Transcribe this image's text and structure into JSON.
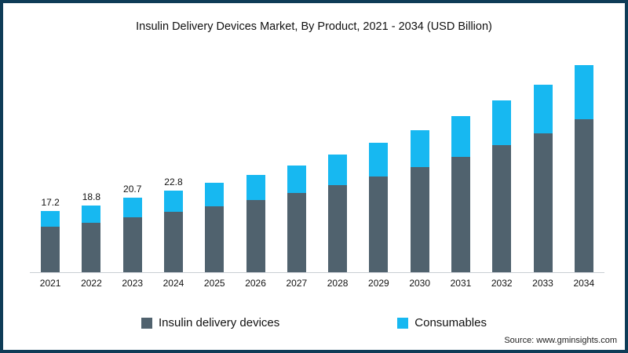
{
  "title": "Insulin Delivery Devices  Market, By Product, 2021 - 2034 (USD Billion)",
  "source": "Source: www.gminsights.com",
  "legend": {
    "devices_label": "Insulin delivery devices",
    "consumables_label": "Consumables"
  },
  "colors": {
    "devices": "#50626e",
    "consumables": "#17b8f1"
  },
  "chart_data": {
    "type": "bar",
    "stacked": true,
    "title": "Insulin Delivery Devices  Market, By Product, 2021 - 2034 (USD Billion)",
    "xlabel": "",
    "ylabel": "",
    "ylim": [
      0,
      60
    ],
    "grid": false,
    "legend_position": "bottom",
    "categories": [
      "2021",
      "2022",
      "2023",
      "2024",
      "2025",
      "2026",
      "2027",
      "2028",
      "2029",
      "2030",
      "2031",
      "2032",
      "2033",
      "2034"
    ],
    "series": [
      {
        "name": "Insulin delivery devices",
        "color": "#50626e",
        "values": [
          12.7,
          13.9,
          15.3,
          16.9,
          18.5,
          20.3,
          22.3,
          24.4,
          26.9,
          29.5,
          32.3,
          35.5,
          39.0,
          42.8
        ]
      },
      {
        "name": "Consumables",
        "color": "#17b8f1",
        "values": [
          4.5,
          4.9,
          5.4,
          5.9,
          6.5,
          7.1,
          7.8,
          8.6,
          9.4,
          10.3,
          11.4,
          12.5,
          13.7,
          15.1
        ]
      }
    ],
    "totals": [
      17.2,
      18.8,
      20.7,
      22.8,
      25.0,
      27.4,
      30.1,
      33.0,
      36.3,
      39.8,
      43.7,
      48.0,
      52.7,
      57.9
    ],
    "total_labels": [
      "17.2",
      "18.8",
      "20.7",
      "22.8",
      "",
      "",
      "",
      "",
      "",
      "",
      "",
      "",
      "",
      ""
    ]
  }
}
